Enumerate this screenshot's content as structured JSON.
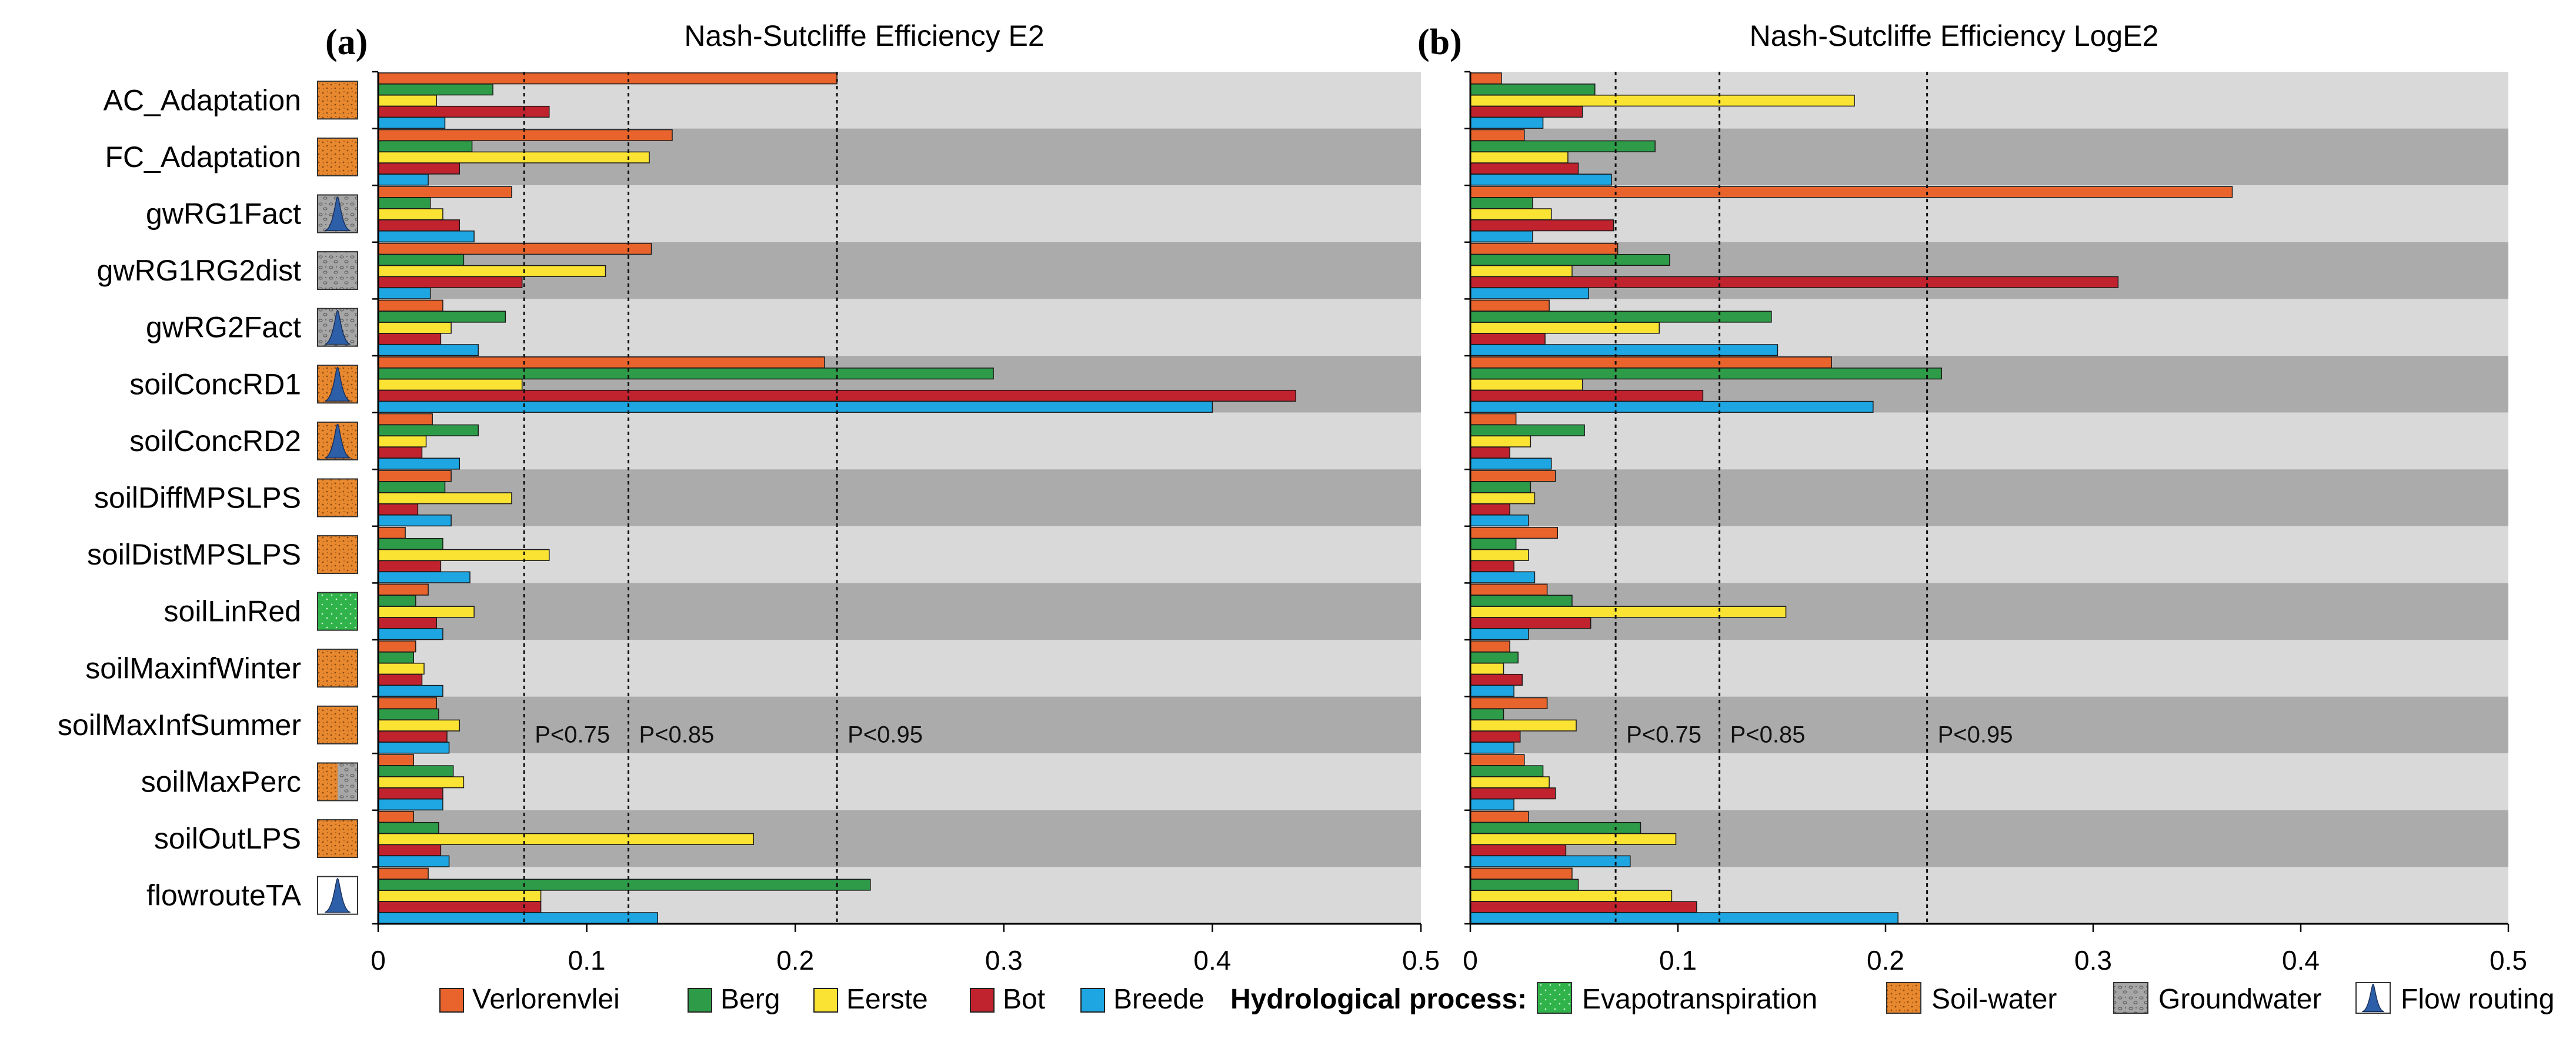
{
  "chart_data": [
    {
      "type": "bar",
      "orientation": "horizontal",
      "panel_label": "(a)",
      "title": "Nash-Sutcliffe Efficiency E2",
      "xlim": [
        0,
        0.5
      ],
      "xticks": [
        0,
        0.1,
        0.2,
        0.3,
        0.4,
        0.5
      ],
      "xtick_labels": [
        "0",
        "0.1",
        "0.2",
        "0.3",
        "0.4",
        "0.5"
      ],
      "thresholds": [
        {
          "value": 0.07,
          "label": "P<0.75"
        },
        {
          "value": 0.12,
          "label": "P<0.85"
        },
        {
          "value": 0.22,
          "label": "P<0.95"
        }
      ],
      "categories": [
        "AC_Adaptation",
        "FC_Adaptation",
        "gwRG1Fact",
        "gwRG1RG2dist",
        "gwRG2Fact",
        "soilConcRD1",
        "soilConcRD2",
        "soilDiffMPSLPS",
        "soilDistMPSLPS",
        "soilLinRed",
        "soilMaxinfWinter",
        "soilMaxInfSummer",
        "soilMaxPerc",
        "soilOutLPS",
        "flowrouteTA"
      ],
      "series": [
        {
          "name": "Verlorenvlei",
          "values": [
            0.22,
            0.141,
            0.064,
            0.131,
            0.031,
            0.214,
            0.026,
            0.035,
            0.013,
            0.024,
            0.018,
            0.028,
            0.017,
            0.017,
            0.024
          ]
        },
        {
          "name": "Berg",
          "values": [
            0.055,
            0.045,
            0.025,
            0.041,
            0.061,
            0.295,
            0.048,
            0.032,
            0.031,
            0.018,
            0.017,
            0.029,
            0.036,
            0.029,
            0.236
          ]
        },
        {
          "name": "Eerste",
          "values": [
            0.028,
            0.13,
            0.031,
            0.109,
            0.035,
            0.069,
            0.023,
            0.064,
            0.082,
            0.046,
            0.022,
            0.039,
            0.041,
            0.18,
            0.078
          ]
        },
        {
          "name": "Bot",
          "values": [
            0.082,
            0.039,
            0.039,
            0.069,
            0.03,
            0.44,
            0.021,
            0.019,
            0.03,
            0.028,
            0.021,
            0.033,
            0.031,
            0.03,
            0.078
          ]
        },
        {
          "name": "Breede",
          "values": [
            0.032,
            0.024,
            0.046,
            0.025,
            0.048,
            0.4,
            0.039,
            0.035,
            0.044,
            0.031,
            0.031,
            0.034,
            0.031,
            0.034,
            0.134
          ]
        }
      ]
    },
    {
      "type": "bar",
      "orientation": "horizontal",
      "panel_label": "(b)",
      "title": "Nash-Sutcliffe Efficiency LogE2",
      "xlim": [
        0,
        0.5
      ],
      "xticks": [
        0,
        0.1,
        0.2,
        0.3,
        0.4,
        0.5
      ],
      "xtick_labels": [
        "0",
        "0.1",
        "0.2",
        "0.3",
        "0.4",
        "0.5"
      ],
      "thresholds": [
        {
          "value": 0.07,
          "label": "P<0.75"
        },
        {
          "value": 0.12,
          "label": "P<0.85"
        },
        {
          "value": 0.22,
          "label": "P<0.95"
        }
      ],
      "categories": [
        "AC_Adaptation",
        "FC_Adaptation",
        "gwRG1Fact",
        "gwRG1RG2dist",
        "gwRG2Fact",
        "soilConcRD1",
        "soilConcRD2",
        "soilDiffMPSLPS",
        "soilDistMPSLPS",
        "soilLinRed",
        "soilMaxinfWinter",
        "soilMaxInfSummer",
        "soilMaxPerc",
        "soilOutLPS",
        "flowrouteTA"
      ],
      "series": [
        {
          "name": "Verlorenvlei",
          "values": [
            0.015,
            0.026,
            0.367,
            0.071,
            0.038,
            0.174,
            0.022,
            0.041,
            0.042,
            0.037,
            0.019,
            0.037,
            0.026,
            0.028,
            0.049
          ]
        },
        {
          "name": "Berg",
          "values": [
            0.06,
            0.089,
            0.03,
            0.096,
            0.145,
            0.227,
            0.055,
            0.029,
            0.022,
            0.049,
            0.023,
            0.016,
            0.035,
            0.082,
            0.052
          ]
        },
        {
          "name": "Eerste",
          "values": [
            0.185,
            0.047,
            0.039,
            0.049,
            0.091,
            0.054,
            0.029,
            0.031,
            0.028,
            0.152,
            0.016,
            0.051,
            0.038,
            0.099,
            0.097
          ]
        },
        {
          "name": "Bot",
          "values": [
            0.054,
            0.052,
            0.069,
            0.312,
            0.036,
            0.112,
            0.019,
            0.019,
            0.021,
            0.058,
            0.025,
            0.024,
            0.041,
            0.046,
            0.109
          ]
        },
        {
          "name": "Breede",
          "values": [
            0.035,
            0.068,
            0.03,
            0.057,
            0.148,
            0.194,
            0.039,
            0.028,
            0.031,
            0.028,
            0.021,
            0.021,
            0.021,
            0.077,
            0.206
          ]
        }
      ]
    }
  ],
  "category_processes": [
    "soil-water",
    "soil-water",
    "flow-routing-groundwater",
    "groundwater",
    "flow-routing-groundwater",
    "flow-routing-soil",
    "flow-routing-soil",
    "soil-water",
    "soil-water",
    "evapotranspiration",
    "soil-water",
    "soil-water",
    "soil-groundwater-mixed",
    "soil-water",
    "flow-routing"
  ],
  "series_colors": {
    "Verlorenvlei": "#e8642c",
    "Berg": "#2e9b48",
    "Eerste": "#fbe334",
    "Bot": "#c0232e",
    "Breede": "#1da6e2"
  },
  "legend": {
    "series": [
      "Verlorenvlei",
      "Berg",
      "Eerste",
      "Bot",
      "Breede"
    ],
    "process_title": "Hydrological process:",
    "processes": [
      {
        "key": "evapotranspiration",
        "label": "Evapotranspiration"
      },
      {
        "key": "soil-water",
        "label": "Soil-water"
      },
      {
        "key": "groundwater",
        "label": "Groundwater"
      },
      {
        "key": "flow-routing",
        "label": "Flow routing"
      }
    ]
  },
  "colors": {
    "band_light": "#d9d9d9",
    "band_dark": "#ababab",
    "soil_water": "#e8882f",
    "evapotranspiration": "#2fb34a",
    "groundwater": "#a6a6a6",
    "flow_routing": "#2d5fa8"
  }
}
